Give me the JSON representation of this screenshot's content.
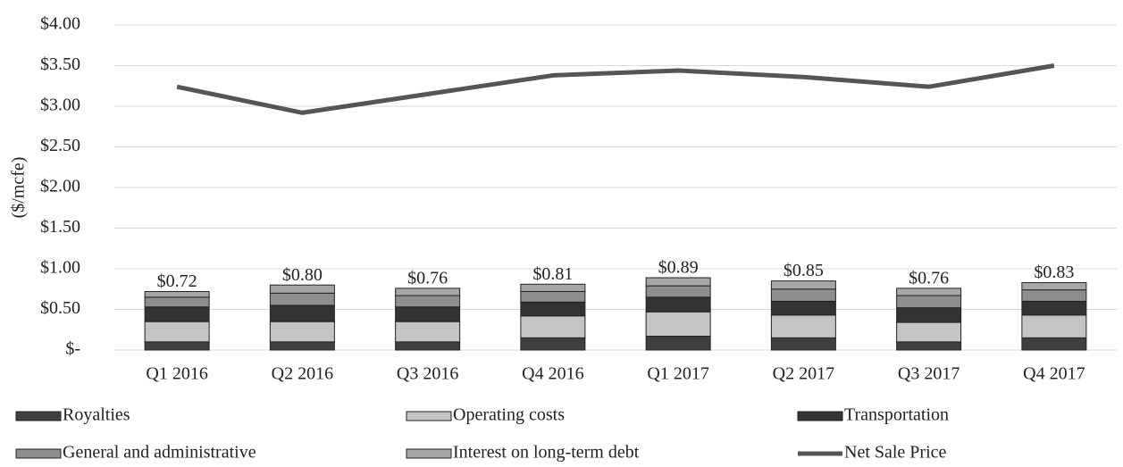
{
  "chart_data": {
    "type": "bar",
    "y_label": "($/mcfe)",
    "categories": [
      "Q1 2016",
      "Q2 2016",
      "Q3 2016",
      "Q4 2016",
      "Q1 2017",
      "Q2 2017",
      "Q3 2017",
      "Q4 2017"
    ],
    "series": [
      {
        "name": "Royalties",
        "type": "bar",
        "color": "#3f3f3f",
        "values": [
          0.1,
          0.1,
          0.1,
          0.15,
          0.17,
          0.15,
          0.1,
          0.15
        ]
      },
      {
        "name": "Operating costs",
        "type": "bar",
        "color": "#c4c4c4",
        "values": [
          0.25,
          0.25,
          0.25,
          0.27,
          0.3,
          0.28,
          0.24,
          0.28
        ]
      },
      {
        "name": "Transportation",
        "type": "bar",
        "color": "#333333",
        "values": [
          0.18,
          0.2,
          0.18,
          0.17,
          0.18,
          0.17,
          0.18,
          0.17
        ]
      },
      {
        "name": "General and administrative",
        "type": "bar",
        "color": "#8e8e8e",
        "values": [
          0.12,
          0.15,
          0.14,
          0.13,
          0.14,
          0.15,
          0.15,
          0.14
        ]
      },
      {
        "name": "Interest on long-term debt",
        "type": "bar",
        "color": "#a6a6a6",
        "values": [
          0.07,
          0.1,
          0.09,
          0.09,
          0.1,
          0.1,
          0.09,
          0.09
        ]
      },
      {
        "name": "Net Sale Price",
        "type": "line",
        "color": "#555555",
        "values": [
          3.24,
          2.92,
          3.15,
          3.38,
          3.44,
          3.36,
          3.24,
          3.5
        ]
      }
    ],
    "totals": {
      "values": [
        0.72,
        0.8,
        0.76,
        0.81,
        0.89,
        0.85,
        0.76,
        0.83
      ],
      "value_labels": [
        "$0.72",
        "$0.80",
        "$0.76",
        "$0.81",
        "$0.89",
        "$0.85",
        "$0.76",
        "$0.83"
      ]
    },
    "ylim": [
      0,
      4
    ],
    "yticks": [
      {
        "value": 0,
        "label": "$-"
      },
      {
        "value": 0.5,
        "label": "$0.50"
      },
      {
        "value": 1,
        "label": "$1.00"
      },
      {
        "value": 1.5,
        "label": "$1.50"
      },
      {
        "value": 2,
        "label": "$2.00"
      },
      {
        "value": 2.5,
        "label": "$2.50"
      },
      {
        "value": 3,
        "label": "$3.00"
      },
      {
        "value": 3.5,
        "label": "$3.50"
      },
      {
        "value": 4,
        "label": "$4.00"
      }
    ],
    "grid": true
  }
}
